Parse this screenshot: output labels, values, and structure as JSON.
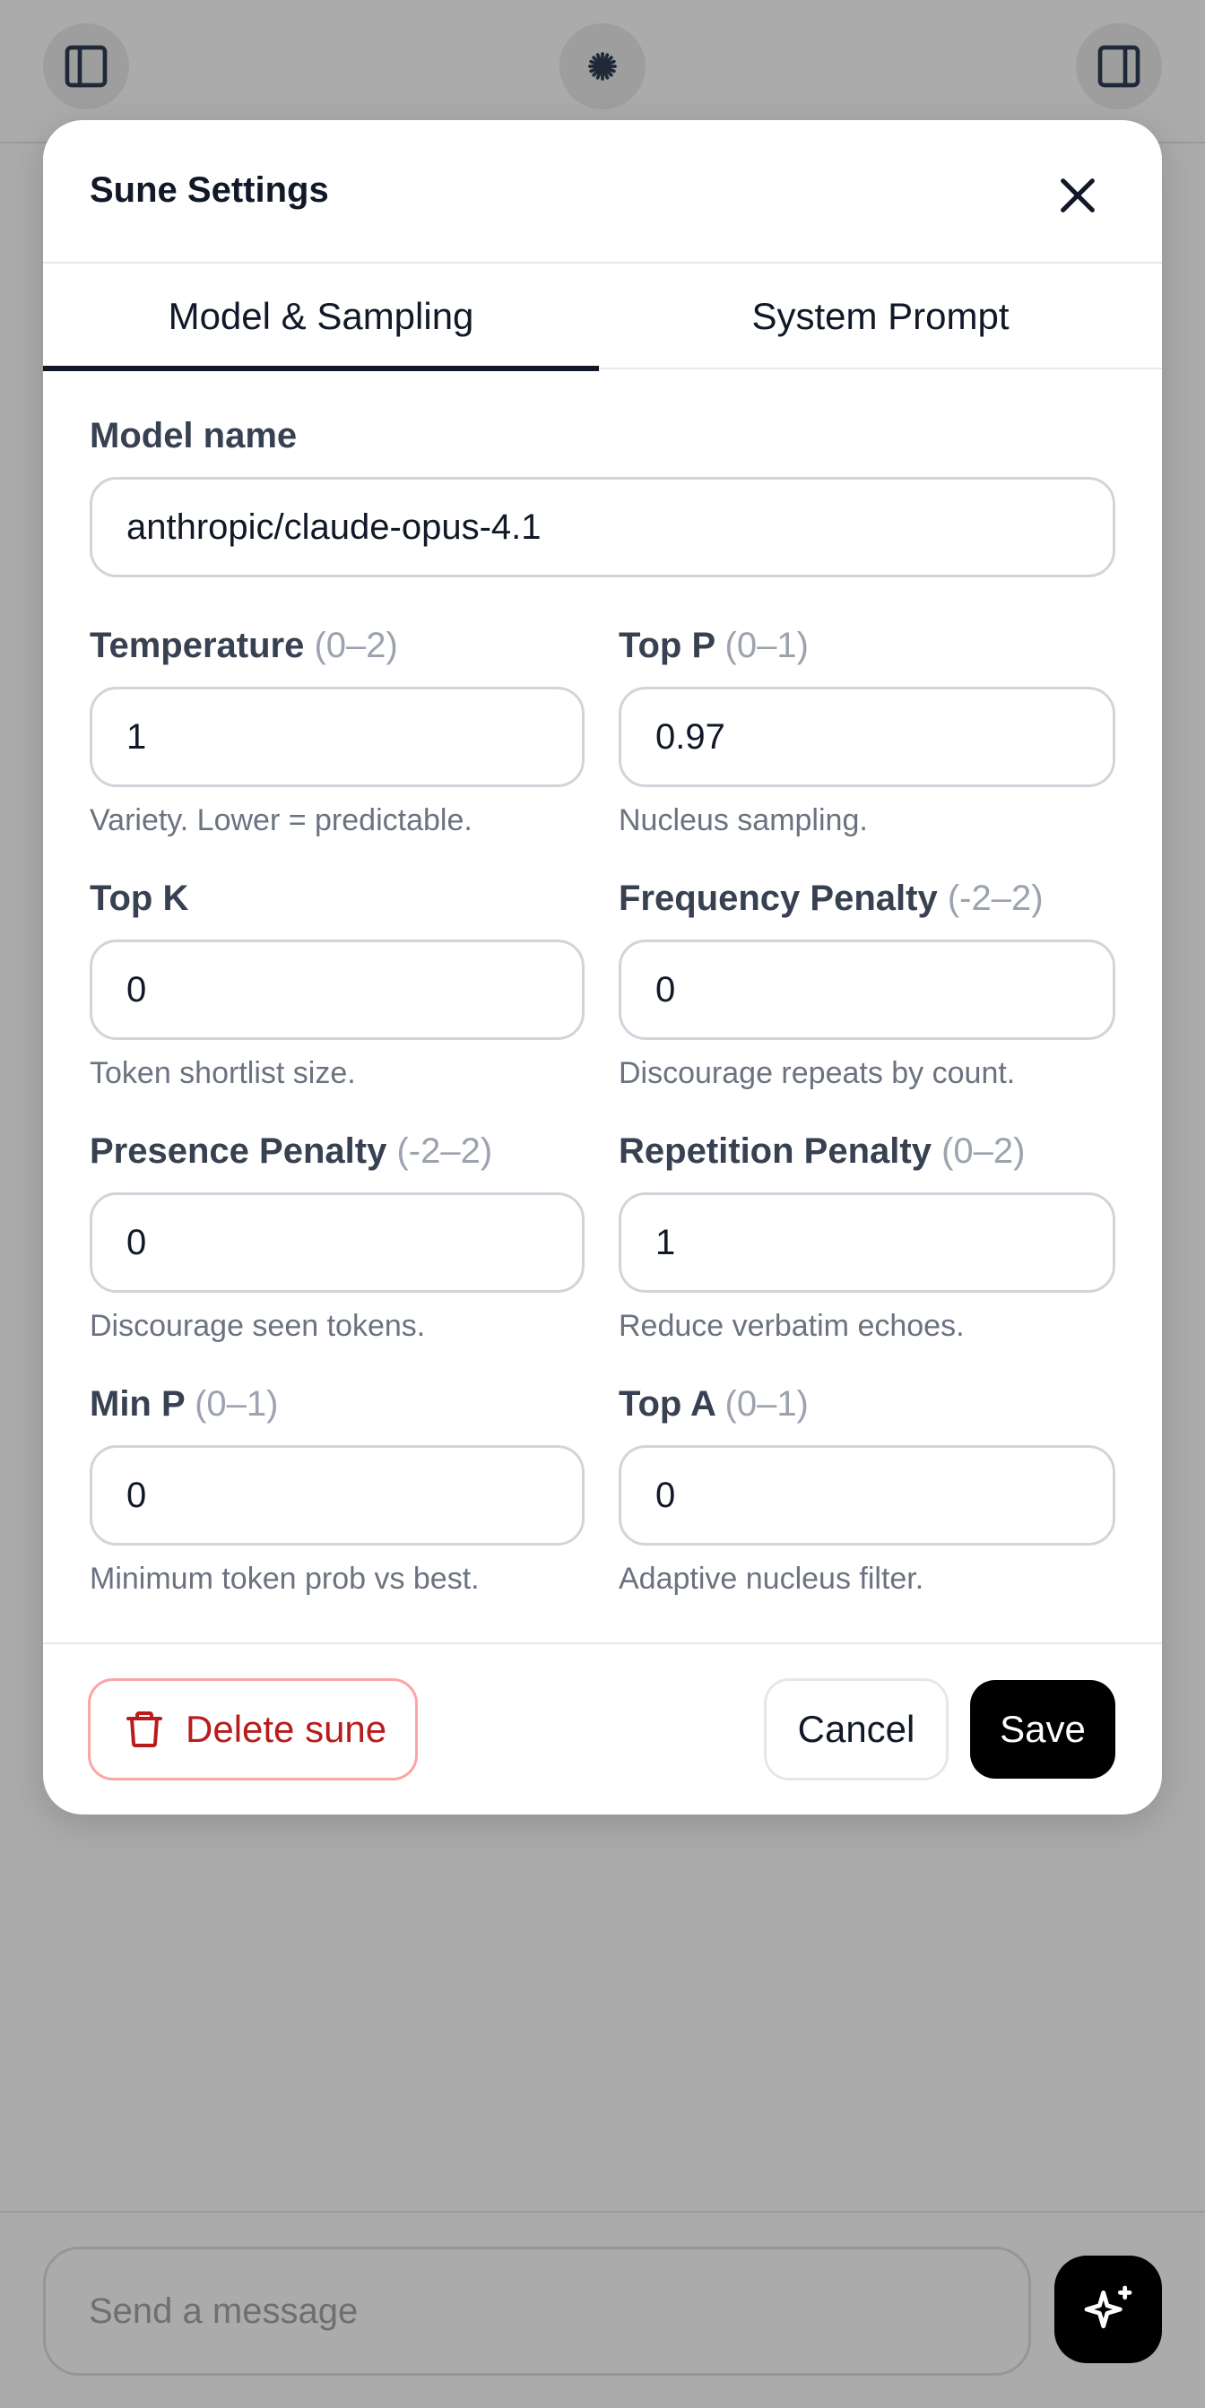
{
  "app": {
    "bottom": {
      "message_placeholder": "Send a message"
    }
  },
  "modal": {
    "title": "Sune Settings",
    "tabs": [
      {
        "label": "Model & Sampling",
        "active": true
      },
      {
        "label": "System Prompt",
        "active": false
      }
    ],
    "model_name": {
      "label": "Model name",
      "value": "anthropic/claude-opus-4.1"
    },
    "fields": {
      "temperature": {
        "label": "Temperature",
        "range": "(0–2)",
        "value": "1",
        "help": "Variety. Lower = predictable."
      },
      "top_p": {
        "label": "Top P",
        "range": "(0–1)",
        "value": "0.97",
        "help": "Nucleus sampling."
      },
      "top_k": {
        "label": "Top K",
        "range": "",
        "value": "0",
        "help": "Token shortlist size."
      },
      "frequency_penalty": {
        "label": "Frequency Penalty",
        "range": "(-2–2)",
        "value": "0",
        "help": "Discourage repeats by count."
      },
      "presence_penalty": {
        "label": "Presence Penalty",
        "range": "(-2–2)",
        "value": "0",
        "help": "Discourage seen tokens."
      },
      "repetition_penalty": {
        "label": "Repetition Penalty",
        "range": "(0–2)",
        "value": "1",
        "help": "Reduce verbatim echoes."
      },
      "min_p": {
        "label": "Min P",
        "range": "(0–1)",
        "value": "0",
        "help": "Minimum token prob vs best."
      },
      "top_a": {
        "label": "Top A",
        "range": "(0–1)",
        "value": "0",
        "help": "Adaptive nucleus filter."
      }
    },
    "footer": {
      "delete_label": "Delete sune",
      "cancel_label": "Cancel",
      "save_label": "Save"
    }
  },
  "colors": {
    "overlay": "#ababab",
    "danger": "#b91c1c",
    "danger_border": "#fca5a5",
    "primary": "#000000"
  },
  "icons": [
    "sidebar-left-icon",
    "sparkle-logo-icon",
    "sidebar-right-icon",
    "close-icon",
    "trash-icon",
    "sparkles-icon"
  ]
}
